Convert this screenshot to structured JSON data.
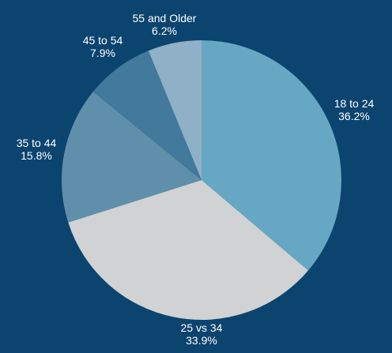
{
  "chart_data": {
    "type": "pie",
    "title": "",
    "slices": [
      {
        "label": "18 to 24",
        "value": 36.2,
        "value_label": "36.2%",
        "color": "#66a7c3"
      },
      {
        "label": "25 vs 34",
        "value": 33.9,
        "value_label": "33.9%",
        "color": "#d0d2d4"
      },
      {
        "label": "35 to 44",
        "value": 15.8,
        "value_label": "15.8%",
        "color": "#5f8fab"
      },
      {
        "label": "45 to 54",
        "value": 7.9,
        "value_label": "7.9%",
        "color": "#42799c"
      },
      {
        "label": "55 and Older",
        "value": 6.2,
        "value_label": "6.2%",
        "color": "#8fb0c7"
      }
    ],
    "start": "12 o'clock",
    "direction": "clockwise",
    "legend": "none",
    "background": "#0b446e"
  }
}
